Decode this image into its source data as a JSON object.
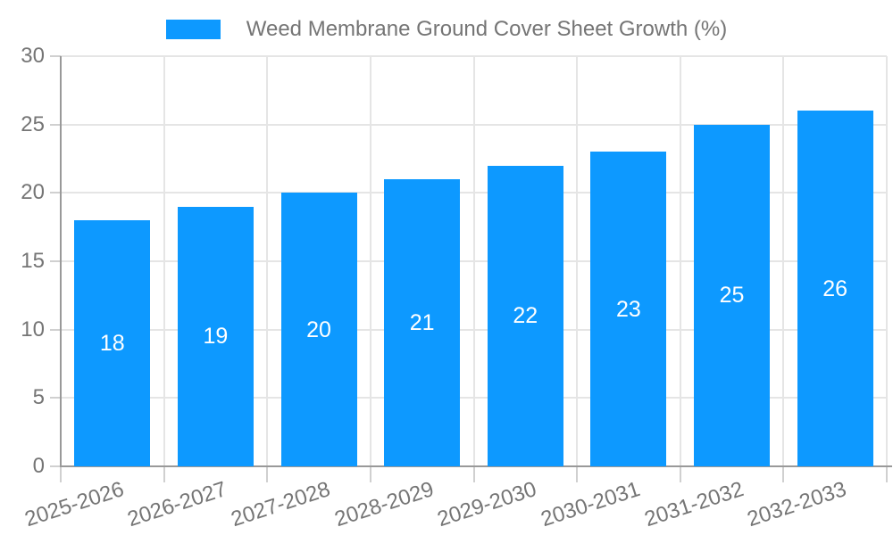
{
  "legend": {
    "items": [
      {
        "label": "Weed Membrane Ground Cover Sheet Growth (%)",
        "color": "#0d99ff"
      }
    ]
  },
  "chart_data": {
    "type": "bar",
    "title": "Weed Membrane Ground Cover Sheet Growth (%)",
    "categories": [
      "2025-2026",
      "2026-2027",
      "2027-2028",
      "2028-2029",
      "2029-2030",
      "2030-2031",
      "2031-2032",
      "2032-2033"
    ],
    "series": [
      {
        "name": "Weed Membrane Ground Cover Sheet Growth (%)",
        "values": [
          18,
          19,
          20,
          21,
          22,
          23,
          25,
          26
        ]
      }
    ],
    "values": [
      18,
      19,
      20,
      21,
      22,
      23,
      25,
      26
    ],
    "value_labels": [
      "18",
      "19",
      "20",
      "21",
      "22",
      "23",
      "25",
      "26"
    ],
    "xlabel": "",
    "ylabel": "",
    "ylim": [
      0,
      30
    ],
    "yticks": [
      "0",
      "5",
      "10",
      "15",
      "20",
      "25",
      "30"
    ],
    "grid": true,
    "legend_position": "top-center",
    "value_label_position": "middle-of-bar"
  },
  "colors": {
    "background": "#ffffff",
    "bar": "#0d99ff",
    "gridline": "#e5e5e5",
    "axis_line": "#999999",
    "tick": "#d0d0d0",
    "tick_label": "#757575",
    "legend_text": "#757575",
    "value_label": "#ffffff"
  }
}
